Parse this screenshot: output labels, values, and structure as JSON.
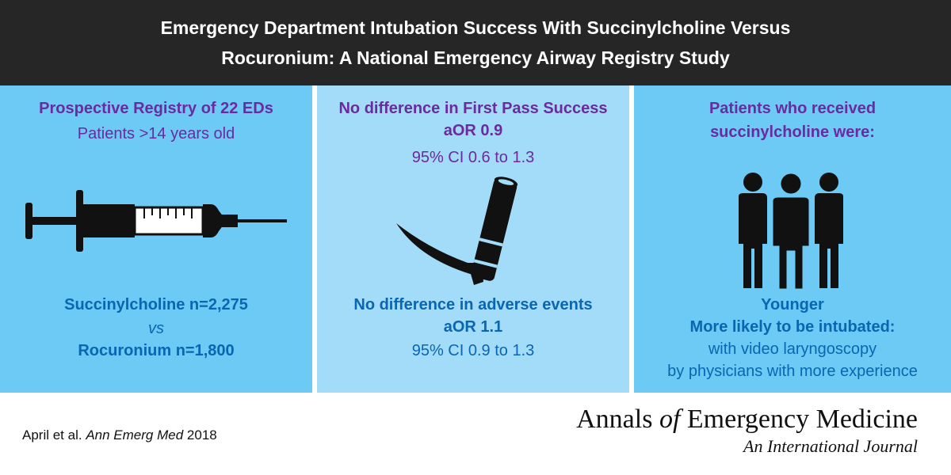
{
  "header": {
    "title_line1": "Emergency Department Intubation Success With Succinylcholine Versus",
    "title_line2": "Rocuronium: A National Emergency Airway Registry Study"
  },
  "panel1": {
    "heading": "Prospective Registry of 22 EDs",
    "subheading": "Patients >14 years old",
    "icon": "syringe-icon",
    "group1": "Succinylcholine n=2,275",
    "vs": "vs",
    "group2": "Rocuronium n=1,800"
  },
  "panel2": {
    "finding1": "No difference in First Pass Success",
    "finding1_aor": "aOR 0.9",
    "finding1_ci": "95% CI 0.6 to 1.3",
    "icon": "laryngoscope-icon",
    "finding2": "No difference in adverse events",
    "finding2_aor": "aOR 1.1",
    "finding2_ci": "95% CI 0.9 to 1.3"
  },
  "panel3": {
    "heading_line1": "Patients who received",
    "heading_line2": "succinylcholine were:",
    "icon": "people-group-icon",
    "result1": "Younger",
    "result2": "More likely to be intubated:",
    "result3": "with video laryngoscopy",
    "result4": "by physicians with more experience"
  },
  "footer": {
    "citation_authors": "April et al.",
    "citation_journal": "Ann Emerg Med",
    "citation_year": "2018",
    "journal_name_part1": "Annals",
    "journal_name_of": "of",
    "journal_name_part2": "Emergency Medicine",
    "journal_subtitle": "An International Journal"
  },
  "colors": {
    "header_bg": "#262626",
    "panel_blue": "#6ccaf5",
    "panel_light_blue": "#a3dcf8",
    "heading_purple": "#6b2aa0",
    "text_blue": "#0a66b0"
  }
}
